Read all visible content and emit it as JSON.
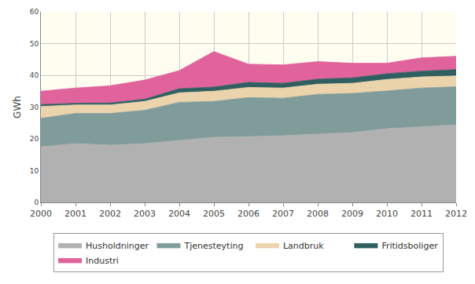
{
  "chart_data": {
    "type": "area",
    "stacked": true,
    "y_label": "GWh",
    "x": [
      2000,
      2001,
      2002,
      2003,
      2004,
      2005,
      2006,
      2007,
      2008,
      2009,
      2010,
      2011,
      2012
    ],
    "xlim": [
      2000,
      2012
    ],
    "xticks": [
      2000,
      2001,
      2002,
      2003,
      2004,
      2005,
      2006,
      2007,
      2008,
      2009,
      2010,
      2011,
      2012
    ],
    "ylim": [
      0,
      60
    ],
    "yticks": [
      0,
      10,
      20,
      30,
      40,
      50,
      60
    ],
    "grid": true,
    "legend": "bottom",
    "series": [
      {
        "name": "Husholdninger",
        "color": "#b1b1b1",
        "values": [
          17.5,
          18.5,
          18.0,
          18.5,
          19.5,
          20.5,
          20.7,
          21.0,
          21.5,
          22.0,
          23.2,
          23.8,
          24.4
        ]
      },
      {
        "name": "Tjenesteyting",
        "color": "#7f9c9b",
        "values": [
          9.0,
          9.5,
          10.0,
          10.5,
          12.0,
          11.3,
          12.3,
          11.8,
          12.5,
          12.3,
          11.9,
          12.2,
          12.0
        ]
      },
      {
        "name": "Landbruk",
        "color": "#ebd3ac",
        "values": [
          3.7,
          2.7,
          2.7,
          2.8,
          3.0,
          3.2,
          3.2,
          3.2,
          3.2,
          3.2,
          3.6,
          3.5,
          3.4
        ]
      },
      {
        "name": "Fritidsboliger",
        "color": "#2f5f60",
        "values": [
          0.6,
          0.5,
          0.6,
          0.7,
          1.3,
          1.3,
          1.6,
          1.5,
          1.6,
          1.7,
          1.8,
          1.8,
          2.0
        ]
      },
      {
        "name": "Industri",
        "color": "#e0639c",
        "values": [
          4.2,
          4.8,
          5.4,
          6.0,
          5.7,
          11.2,
          5.7,
          5.8,
          5.5,
          4.6,
          3.3,
          4.2,
          4.2
        ]
      }
    ]
  }
}
